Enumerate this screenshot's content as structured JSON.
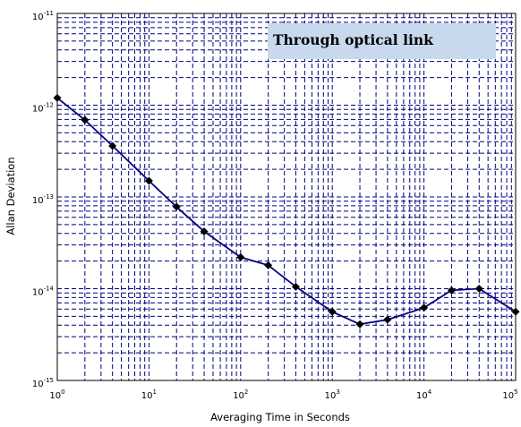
{
  "chart_data": {
    "type": "line",
    "title": "",
    "xlabel": "Averaging Time in Seconds",
    "ylabel": "Allan Deviation",
    "xscale": "log",
    "yscale": "log",
    "xlim": [
      1,
      100000
    ],
    "ylim": [
      1e-15,
      1e-11
    ],
    "grid": true,
    "grid_style": "dashed",
    "x_ticks": [
      {
        "base": "10",
        "exp": "0",
        "value": 1
      },
      {
        "base": "10",
        "exp": "1",
        "value": 10
      },
      {
        "base": "10",
        "exp": "2",
        "value": 100
      },
      {
        "base": "10",
        "exp": "3",
        "value": 1000
      },
      {
        "base": "10",
        "exp": "4",
        "value": 10000
      },
      {
        "base": "10",
        "exp": "5",
        "value": 100000
      }
    ],
    "y_ticks": [
      {
        "base": "10",
        "exp": "-11",
        "value": 1e-11
      },
      {
        "base": "10",
        "exp": "-12",
        "value": 1e-12
      },
      {
        "base": "10",
        "exp": "-13",
        "value": 1e-13
      },
      {
        "base": "10",
        "exp": "-14",
        "value": 1e-14
      },
      {
        "base": "10",
        "exp": "-15",
        "value": 1e-15
      }
    ],
    "annotation": "Through optical link",
    "series": [
      {
        "name": "",
        "color": "#000080",
        "marker": "diamond",
        "x": [
          1,
          2,
          4,
          10,
          20,
          40,
          100,
          200,
          400,
          1000,
          2000,
          4000,
          10000,
          20000,
          40000,
          100000
        ],
        "y": [
          1.2e-12,
          6.9e-13,
          3.6e-13,
          1.5e-13,
          7.8e-14,
          4.2e-14,
          2.2e-14,
          1.8e-14,
          1.05e-14,
          5.6e-15,
          4.1e-15,
          4.6e-15,
          6.2e-15,
          9.6e-15,
          1e-14,
          5.6e-15
        ]
      }
    ]
  }
}
